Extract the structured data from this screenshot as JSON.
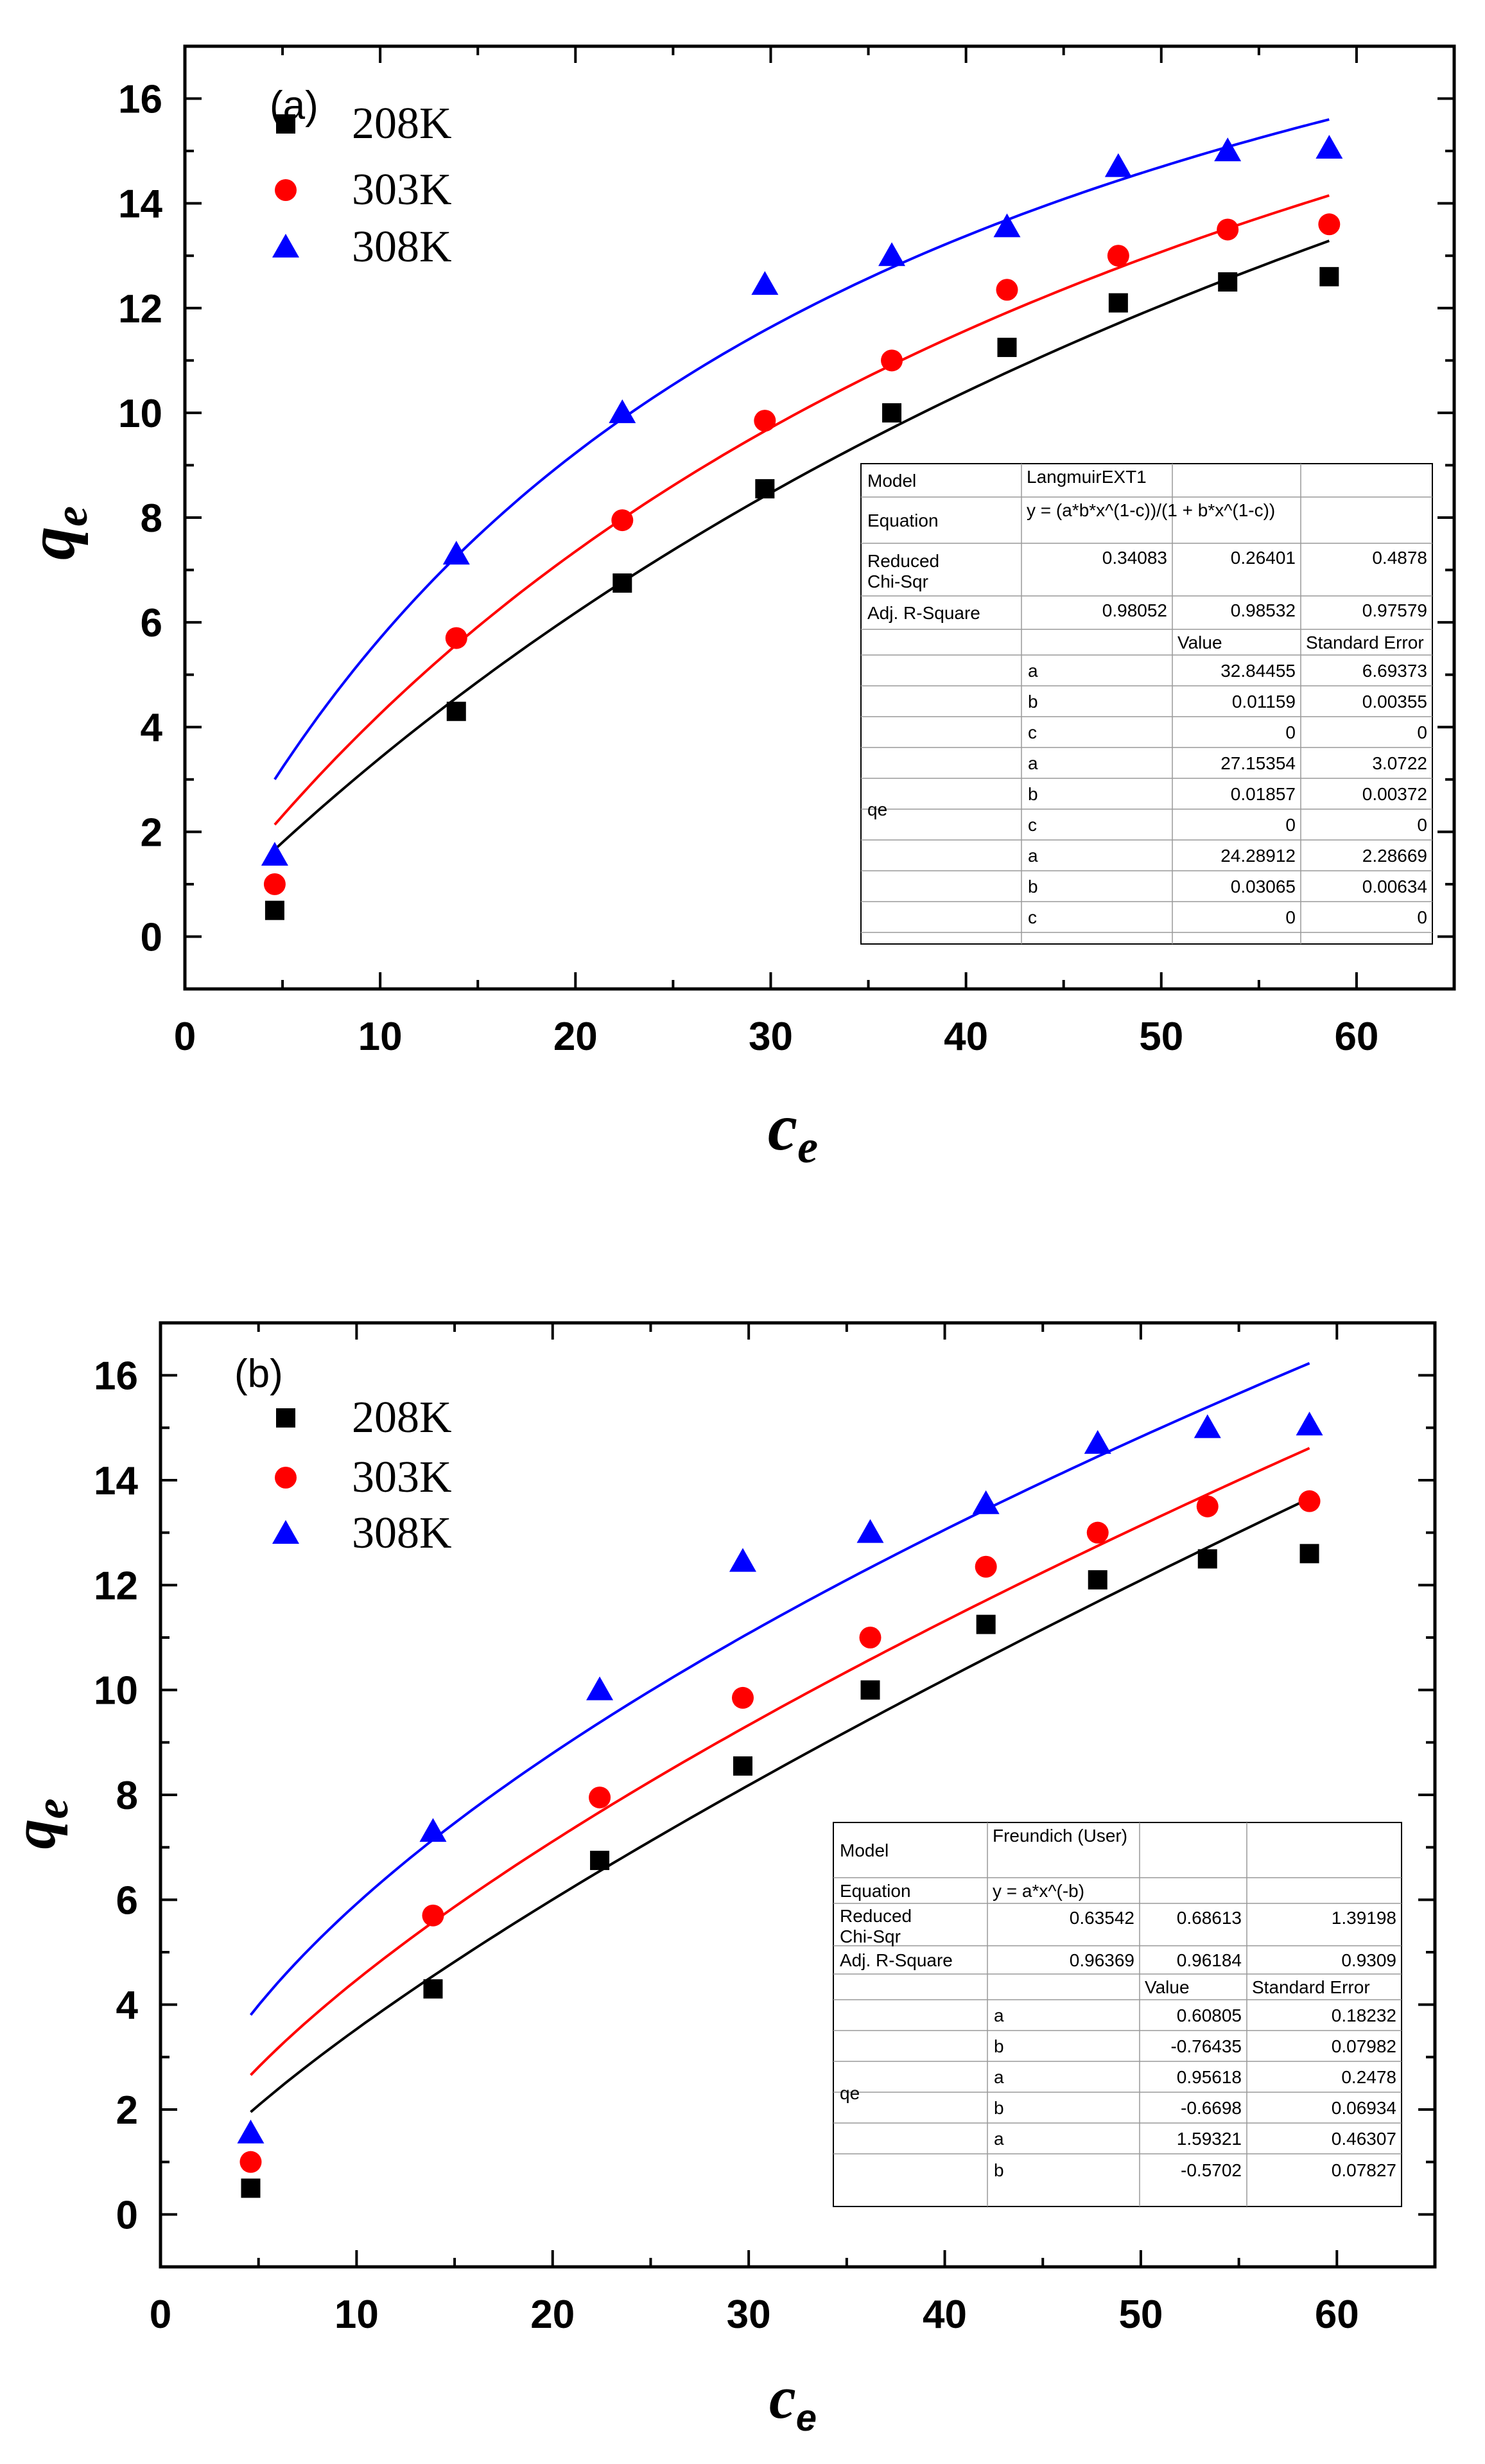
{
  "colors": {
    "series": [
      "#000000",
      "#ff0000",
      "#0000ff"
    ]
  },
  "chart_data": [
    {
      "type": "scatter",
      "panel_label": "(a)",
      "xlabel": "c",
      "xlabel_sub": "e",
      "ylabel": "q",
      "ylabel_sub": "e",
      "xlim": [
        0,
        65
      ],
      "ylim": [
        -1,
        17
      ],
      "xticks": [
        0,
        10,
        20,
        30,
        40,
        50,
        60
      ],
      "yticks": [
        0,
        2,
        4,
        6,
        8,
        10,
        12,
        14,
        16
      ],
      "x": [
        4.6,
        13.9,
        22.4,
        29.7,
        36.2,
        42.1,
        47.8,
        53.4,
        58.6
      ],
      "series": [
        {
          "name": "208K",
          "marker": "square",
          "values": [
            0.5,
            4.3,
            6.75,
            8.55,
            10.0,
            11.25,
            12.1,
            12.5,
            12.6
          ],
          "fit": {
            "model": "langmuir_ext",
            "a": 32.84455,
            "b": 0.01159,
            "c": 0
          }
        },
        {
          "name": "303K",
          "marker": "circle",
          "values": [
            1.0,
            5.7,
            7.95,
            9.85,
            11.0,
            12.35,
            13.0,
            13.5,
            13.6
          ],
          "fit": {
            "model": "langmuir_ext",
            "a": 27.15354,
            "b": 0.01857,
            "c": 0
          }
        },
        {
          "name": "308K",
          "marker": "triangle",
          "values": [
            1.55,
            7.3,
            10.0,
            12.45,
            13.0,
            13.55,
            14.7,
            15.0,
            15.05
          ],
          "fit": {
            "model": "langmuir_ext",
            "a": 24.28912,
            "b": 0.03065,
            "c": 0
          }
        }
      ],
      "fit_table": {
        "summary_rows": [
          [
            "Model",
            "LangmuirEXT1",
            "",
            ""
          ],
          [
            "Equation",
            "y = (a*b*x^(1-c))/(1 + b*x^(1-c))",
            "",
            ""
          ],
          [
            "Reduced Chi-Sqr",
            "0.34083",
            "0.26401",
            "0.4878"
          ],
          [
            "Adj. R-Square",
            "0.98052",
            "0.98532",
            "0.97579"
          ]
        ],
        "header": [
          "Value",
          "Standard Error"
        ],
        "group_label": "qe",
        "param_rows": [
          [
            "a",
            "32.84455",
            "6.69373"
          ],
          [
            "b",
            "0.01159",
            "0.00355"
          ],
          [
            "c",
            "0",
            "0"
          ],
          [
            "a",
            "27.15354",
            "3.0722"
          ],
          [
            "b",
            "0.01857",
            "0.00372"
          ],
          [
            "c",
            "0",
            "0"
          ],
          [
            "a",
            "24.28912",
            "2.28669"
          ],
          [
            "b",
            "0.03065",
            "0.00634"
          ],
          [
            "c",
            "0",
            "0"
          ]
        ]
      }
    },
    {
      "type": "scatter",
      "panel_label": "(b)",
      "xlabel": "c",
      "xlabel_sub": "e",
      "ylabel": "q",
      "ylabel_sub": "e",
      "xlim": [
        0,
        65
      ],
      "ylim": [
        -1,
        17
      ],
      "xticks": [
        0,
        10,
        20,
        30,
        40,
        50,
        60
      ],
      "yticks": [
        0,
        2,
        4,
        6,
        8,
        10,
        12,
        14,
        16
      ],
      "x": [
        4.6,
        13.9,
        22.4,
        29.7,
        36.2,
        42.1,
        47.8,
        53.4,
        58.6
      ],
      "series": [
        {
          "name": "208K",
          "marker": "square",
          "values": [
            0.5,
            4.3,
            6.75,
            8.55,
            10.0,
            11.25,
            12.1,
            12.5,
            12.6
          ],
          "fit": {
            "model": "freundlich",
            "a": 0.60805,
            "b": -0.76435
          }
        },
        {
          "name": "303K",
          "marker": "circle",
          "values": [
            1.0,
            5.7,
            7.95,
            9.85,
            11.0,
            12.35,
            13.0,
            13.5,
            13.6
          ],
          "fit": {
            "model": "freundlich",
            "a": 0.95618,
            "b": -0.6698
          }
        },
        {
          "name": "308K",
          "marker": "triangle",
          "values": [
            1.55,
            7.3,
            10.0,
            12.45,
            13.0,
            13.55,
            14.7,
            15.0,
            15.05
          ],
          "fit": {
            "model": "freundlich",
            "a": 1.59321,
            "b": -0.5702
          }
        }
      ],
      "fit_table": {
        "summary_rows": [
          [
            "Model",
            "Freundich (User)",
            "",
            ""
          ],
          [
            "Equation",
            "y = a*x^(-b)",
            "",
            ""
          ],
          [
            "Reduced Chi-Sqr",
            "0.63542",
            "0.68613",
            "1.39198"
          ],
          [
            "Adj. R-Square",
            "0.96369",
            "0.96184",
            "0.9309"
          ]
        ],
        "header": [
          "Value",
          "Standard Error"
        ],
        "group_label": "qe",
        "param_rows": [
          [
            "a",
            "0.60805",
            "0.18232"
          ],
          [
            "b",
            "-0.76435",
            "0.07982"
          ],
          [
            "a",
            "0.95618",
            "0.2478"
          ],
          [
            "b",
            "-0.6698",
            "0.06934"
          ],
          [
            "a",
            "1.59321",
            "0.46307"
          ],
          [
            "b",
            "-0.5702",
            "0.07827"
          ]
        ]
      }
    }
  ]
}
